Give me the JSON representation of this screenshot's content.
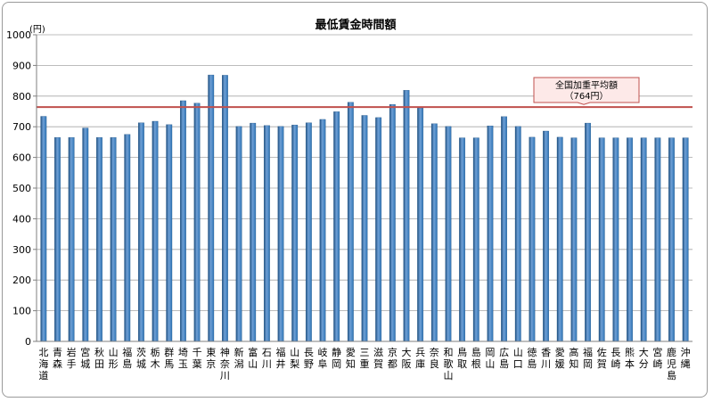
{
  "chart_data": {
    "type": "bar",
    "title": "最低賃金時間額",
    "ylabel": "(円)",
    "xlabel": "",
    "ylim": [
      0,
      1000
    ],
    "yticks": [
      0,
      100,
      200,
      300,
      400,
      500,
      600,
      700,
      800,
      900,
      1000
    ],
    "grid": true,
    "legend": "none",
    "colors": {
      "bar": "#2e74b5",
      "bar_light": "#6fa0d6",
      "bar_dark": "#1d4f80",
      "average_line": "#c0504d",
      "callout_fill": "#fde9e8",
      "callout_border": "#c0504d"
    },
    "categories": [
      "北海道",
      "青森",
      "岩手",
      "宮城",
      "秋田",
      "山形",
      "福島",
      "茨城",
      "栃木",
      "群馬",
      "埼玉",
      "千葉",
      "東京",
      "神奈川",
      "新潟",
      "富山",
      "石川",
      "福井",
      "山梨",
      "長野",
      "岐阜",
      "静岡",
      "愛知",
      "三重",
      "滋賀",
      "京都",
      "大阪",
      "兵庫",
      "奈良",
      "和歌山",
      "鳥取",
      "島根",
      "岡山",
      "広島",
      "山口",
      "徳島",
      "香川",
      "愛媛",
      "高知",
      "福岡",
      "佐賀",
      "長崎",
      "熊本",
      "大分",
      "宮崎",
      "鹿児島",
      "沖縄"
    ],
    "values": [
      734,
      665,
      665,
      696,
      665,
      665,
      675,
      713,
      718,
      707,
      785,
      777,
      869,
      868,
      701,
      712,
      704,
      701,
      706,
      713,
      724,
      749,
      780,
      737,
      730,
      773,
      819,
      761,
      710,
      701,
      664,
      664,
      703,
      733,
      701,
      666,
      686,
      666,
      664,
      712,
      664,
      664,
      664,
      664,
      664,
      664,
      664
    ],
    "average_line": {
      "value": 764,
      "label_line1": "全国加重平均額",
      "label_line2": "（764円）"
    }
  }
}
